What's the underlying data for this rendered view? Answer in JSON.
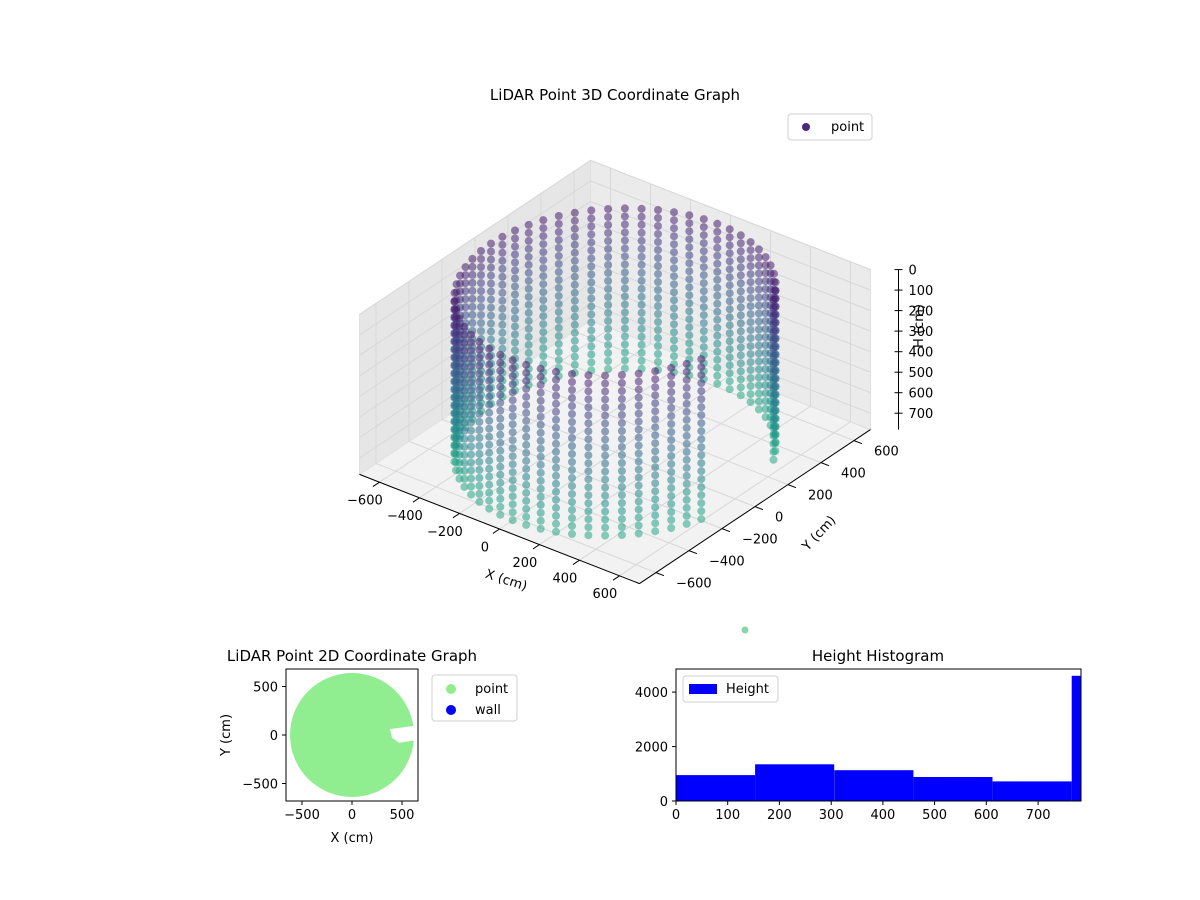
{
  "chart_data": [
    {
      "type": "scatter",
      "title": "LiDAR Point 3D Coordinate Graph",
      "xlabel": "X (cm)",
      "ylabel": "Y (cm)",
      "zlabel": "H (cm)",
      "x_ticks": [
        "−600",
        "−400",
        "−200",
        "0",
        "200",
        "400",
        "600"
      ],
      "y_ticks": [
        "−600",
        "−400",
        "−200",
        "0",
        "200",
        "400",
        "600"
      ],
      "z_ticks": [
        "0",
        "100",
        "200",
        "300",
        "400",
        "500",
        "600",
        "700"
      ],
      "xlim": [
        -700,
        700
      ],
      "ylim": [
        -700,
        700
      ],
      "zlim": [
        780,
        0
      ],
      "z_inverted": true,
      "series": [
        {
          "name": "point",
          "color": "#472a7a"
        }
      ],
      "structure": {
        "shape": "cylindrical wall of points",
        "radius": 620,
        "height_range": [
          0,
          780
        ],
        "gap_angle_range_deg": [
          -15,
          25
        ],
        "colormap": "viridis",
        "color_by": "height"
      },
      "legend": "top-right",
      "grid": true
    },
    {
      "type": "scatter",
      "title": "LiDAR Point 2D Coordinate Graph",
      "xlabel": "X (cm)",
      "ylabel": "Y (cm)",
      "x_ticks": [
        "−500",
        "0",
        "500"
      ],
      "y_ticks": [
        "500",
        "0",
        "−500"
      ],
      "xlim": [
        -660,
        660
      ],
      "ylim": [
        -680,
        680
      ],
      "series": [
        {
          "name": "point",
          "color": "#90ee90"
        },
        {
          "name": "wall",
          "color": "#0000ff"
        }
      ],
      "disc_radius": 620,
      "legend": "outside-right"
    },
    {
      "type": "bar",
      "title": "Height Histogram",
      "series_name": "Height",
      "color": "#0000ff",
      "bins": [
        {
          "start": 0,
          "end": 153,
          "count": 950
        },
        {
          "start": 153,
          "end": 306,
          "count": 1350
        },
        {
          "start": 306,
          "end": 459,
          "count": 1130
        },
        {
          "start": 459,
          "end": 612,
          "count": 880
        },
        {
          "start": 612,
          "end": 765,
          "count": 720
        },
        {
          "start": 765,
          "end": 783,
          "count": 4600
        }
      ],
      "x_ticks": [
        "0",
        "100",
        "200",
        "300",
        "400",
        "500",
        "600",
        "700"
      ],
      "y_ticks": [
        "0",
        "2000",
        "4000"
      ],
      "xlim": [
        0,
        783
      ],
      "ylim": [
        0,
        4850
      ],
      "legend": "top-left"
    }
  ]
}
